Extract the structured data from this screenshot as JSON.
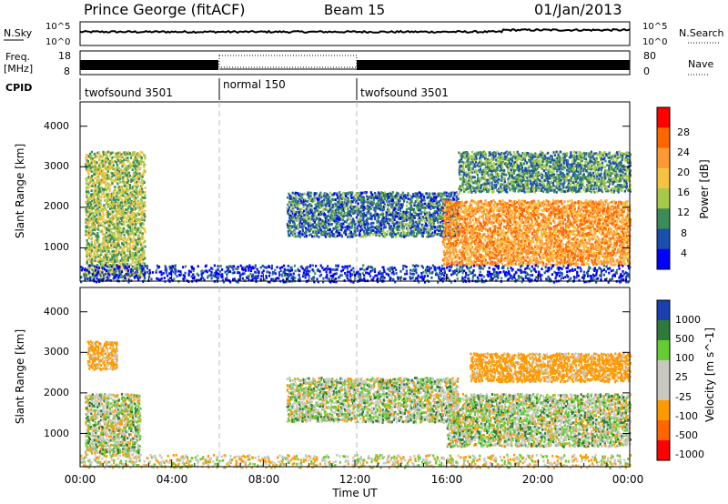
{
  "header": {
    "station": "Prince George (fitACF)",
    "beam": "Beam 15",
    "date": "01/Jan/2013"
  },
  "noise_panel": {
    "left_label": "N.Sky",
    "right_label": "N.Search",
    "left_ticks": [
      "10^5",
      "10^0"
    ],
    "right_ticks": [
      "10^5",
      "10^0"
    ]
  },
  "freq_panel": {
    "left_label_1": "Freq.",
    "left_label_2": "[MHz]",
    "right_label": "Nave",
    "left_ticks": [
      "18",
      "8"
    ],
    "right_ticks": [
      "80",
      "0"
    ]
  },
  "cpid": {
    "label": "CPID",
    "segments": [
      {
        "name": "twofsound 3501",
        "start_hour": 0,
        "end_hour": 6
      },
      {
        "name": "normal 150",
        "start_hour": 6,
        "end_hour": 12
      },
      {
        "name": "twofsound 3501",
        "start_hour": 12,
        "end_hour": 24
      }
    ]
  },
  "chart_data": [
    {
      "type": "heatmap",
      "title": "",
      "xlabel": "Time UT",
      "ylabel": "Slant Range [km]",
      "xlim": [
        0,
        24
      ],
      "ylim": [
        180,
        4600
      ],
      "yticks": [
        "1000",
        "2000",
        "3000",
        "4000"
      ],
      "colorbar": {
        "label": "Power [dB]",
        "ticks": [
          "28",
          "24",
          "20",
          "16",
          "12",
          "8",
          "4"
        ],
        "colors": [
          "#ff0000",
          "#ff6600",
          "#ff9933",
          "#f5c242",
          "#a6c94a",
          "#3c8c5a",
          "#1a4fb0",
          "#0000ff"
        ]
      },
      "regions": [
        {
          "hours": [
            0.2,
            2.8
          ],
          "range_km": [
            300,
            3400
          ],
          "typical_db": 14
        },
        {
          "hours": [
            9.0,
            16.5
          ],
          "range_km": [
            1300,
            2400
          ],
          "typical_db": 8
        },
        {
          "hours": [
            15.8,
            24.0
          ],
          "range_km": [
            600,
            2200
          ],
          "typical_db": 22
        },
        {
          "hours": [
            16.5,
            24.0
          ],
          "range_km": [
            2400,
            3400
          ],
          "typical_db": 10
        },
        {
          "hours": [
            0.0,
            24.0
          ],
          "range_km": [
            180,
            600
          ],
          "typical_db": 4
        }
      ]
    },
    {
      "type": "heatmap",
      "title": "",
      "xlabel": "Time UT",
      "ylabel": "Slant Range [km]",
      "xlim": [
        0,
        24
      ],
      "ylim": [
        180,
        4600
      ],
      "yticks": [
        "1000",
        "2000",
        "3000",
        "4000"
      ],
      "xticks": [
        "00:00",
        "04:00",
        "08:00",
        "12:00",
        "16:00",
        "20:00",
        "00:00"
      ],
      "colorbar": {
        "label": "Velocity [m s^-1]",
        "ticks": [
          "1000",
          "500",
          "100",
          "25",
          "-25",
          "-100",
          "-500",
          "-1000"
        ],
        "colors": [
          "#1a3fb0",
          "#2e7a3a",
          "#66cc33",
          "#c8c8c0",
          "#c8c8c0",
          "#ff9900",
          "#ff6600",
          "#ff0000"
        ]
      },
      "regions": [
        {
          "hours": [
            0.2,
            2.6
          ],
          "range_km": [
            500,
            2000
          ],
          "typical_velocity": 0
        },
        {
          "hours": [
            0.3,
            1.6
          ],
          "range_km": [
            2600,
            3300
          ],
          "typical_velocity": -200
        },
        {
          "hours": [
            9.0,
            16.5
          ],
          "range_km": [
            1300,
            2400
          ],
          "typical_velocity": 0
        },
        {
          "hours": [
            16.0,
            24.0
          ],
          "range_km": [
            700,
            2000
          ],
          "typical_velocity": 0
        },
        {
          "hours": [
            17.0,
            24.0
          ],
          "range_km": [
            2300,
            3000
          ],
          "typical_velocity": -200
        },
        {
          "hours": [
            0.0,
            24.0
          ],
          "range_km": [
            180,
            500
          ],
          "typical_velocity": -50
        }
      ]
    }
  ],
  "x_axis": {
    "label": "Time UT",
    "ticks": [
      "00:00",
      "04:00",
      "08:00",
      "12:00",
      "16:00",
      "20:00",
      "00:00"
    ]
  }
}
